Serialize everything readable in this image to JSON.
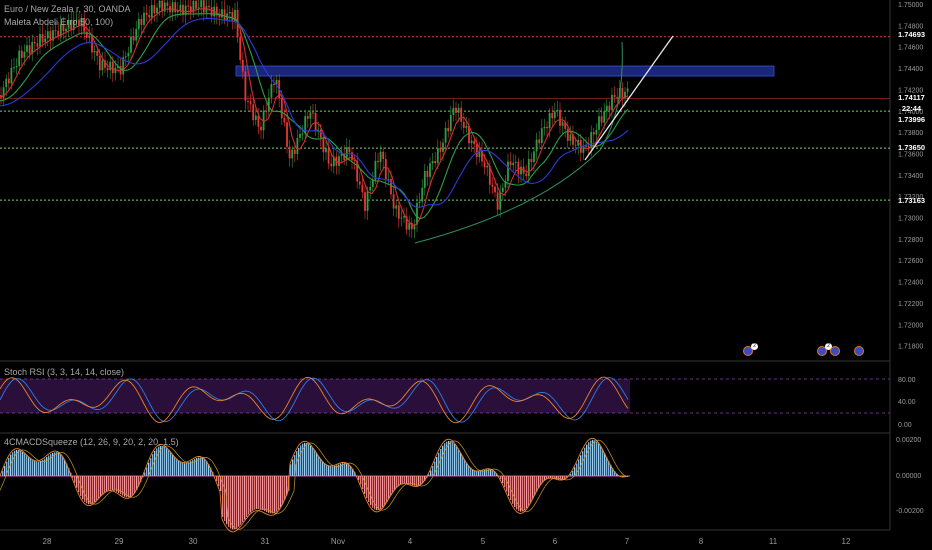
{
  "header": {
    "symbol_line": "Euro / New Zeala  r, 30, OANDA",
    "indicator_line": "Maleta Abdeli   Erro   50, 100)"
  },
  "stoch": {
    "title": "Stoch RSI (3, 3, 14, 14, close)"
  },
  "macd": {
    "title": "4CMACDSqueeze (12, 26, 9, 20, 2, 20, 1.5)"
  },
  "price_axis": [
    "1.75000",
    "1.74800",
    "1.74600",
    "1.74400",
    "1.74200",
    "1.74000",
    "1.73800",
    "1.73600",
    "1.73400",
    "1.73200",
    "1.73000",
    "1.72800",
    "1.72600",
    "1.72400",
    "1.72200",
    "1.72000",
    "1.71800"
  ],
  "price_tags": [
    {
      "label": "1.74693",
      "color": "#e53935"
    },
    {
      "label": "1.74117",
      "color": "#e53935"
    },
    {
      "label": "22:44",
      "color": "#e53935"
    },
    {
      "label": "1.73996",
      "color": "#2e9d44"
    },
    {
      "label": "1.73650",
      "color": "#2e9d44"
    },
    {
      "label": "1.73163",
      "color": "#2e9d44"
    }
  ],
  "stoch_axis": [
    "80.00",
    "40.00",
    "0.00"
  ],
  "macd_axis": [
    "0.00200",
    "0.00000",
    "-0.00200"
  ],
  "time_axis": [
    "28",
    "29",
    "30",
    "31",
    "Nov",
    "4",
    "5",
    "6",
    "7",
    "8",
    "11",
    "12"
  ],
  "events": [
    {
      "badge": "2"
    },
    {
      "badge": "2"
    },
    {
      "badge": ""
    },
    {
      "badge": ""
    }
  ],
  "colors": {
    "bull": "#2e9d44",
    "bear": "#e53935",
    "resistance": "#e53935",
    "support": "#7cd36a",
    "zone": "#1e2d8f",
    "stoch_fill": "#2a0f3a"
  },
  "chart_data": {
    "type": "candlestick",
    "y_range": [
      1.718,
      1.75
    ],
    "horizontal_levels": [
      1.74693,
      1.74117,
      1.73996,
      1.7365,
      1.73163
    ],
    "stoch_levels": [
      80,
      20
    ],
    "macd_range": [
      -0.002,
      0.002
    ]
  }
}
